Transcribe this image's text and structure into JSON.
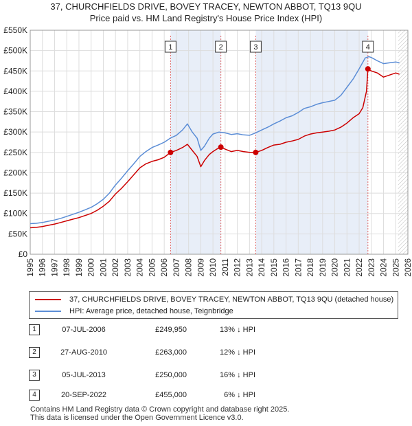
{
  "title_line1": "37, CHURCHFIELDS DRIVE, BOVEY TRACEY, NEWTON ABBOT, TQ13 9QU",
  "title_line2": "Price paid vs. HM Land Registry's House Price Index (HPI)",
  "chart_data": {
    "type": "line",
    "x_range": [
      1995,
      2026
    ],
    "ylim": [
      0,
      550000
    ],
    "y_ticks": [
      0,
      50000,
      100000,
      150000,
      200000,
      250000,
      300000,
      350000,
      400000,
      450000,
      500000,
      550000
    ],
    "y_tick_labels": [
      "£0",
      "£50K",
      "£100K",
      "£150K",
      "£200K",
      "£250K",
      "£300K",
      "£350K",
      "£400K",
      "£450K",
      "£500K",
      "£550K"
    ],
    "x_ticks": [
      1995,
      1996,
      1997,
      1998,
      1999,
      2000,
      2001,
      2002,
      2003,
      2004,
      2005,
      2006,
      2007,
      2008,
      2009,
      2010,
      2011,
      2012,
      2013,
      2014,
      2015,
      2016,
      2017,
      2018,
      2019,
      2020,
      2021,
      2022,
      2023,
      2024,
      2025,
      2026
    ],
    "x_tick_labels": [
      "1995",
      "1996",
      "1997",
      "1998",
      "1999",
      "2000",
      "2001",
      "2002",
      "2003",
      "2004",
      "2005",
      "2006",
      "2007",
      "2008",
      "2009",
      "2010",
      "2011",
      "2012",
      "2013",
      "2014",
      "2015",
      "2016",
      "2017",
      "2018",
      "2019",
      "2020",
      "2021",
      "2022",
      "2023",
      "2024",
      "2025",
      "2026"
    ],
    "grid": true,
    "shaded_periods": [
      [
        2006.52,
        2010.65
      ],
      [
        2013.51,
        2022.72
      ]
    ],
    "future_hatch_from": 2025.2,
    "series": [
      {
        "name": "37, CHURCHFIELDS DRIVE, BOVEY TRACEY, NEWTON ABBOT, TQ13 9QU (detached house)",
        "color": "#cc0000",
        "x": [
          1995.0,
          1995.5,
          1996.0,
          1996.5,
          1997.0,
          1997.5,
          1998.0,
          1998.5,
          1999.0,
          1999.5,
          2000.0,
          2000.5,
          2001.0,
          2001.5,
          2002.0,
          2002.5,
          2003.0,
          2003.5,
          2004.0,
          2004.5,
          2005.0,
          2005.5,
          2006.0,
          2006.52,
          2007.0,
          2007.5,
          2007.9,
          2008.3,
          2008.7,
          2009.0,
          2009.3,
          2009.7,
          2010.0,
          2010.3,
          2010.65,
          2011.0,
          2011.5,
          2012.0,
          2012.5,
          2013.0,
          2013.51,
          2014.0,
          2014.5,
          2015.0,
          2015.5,
          2016.0,
          2016.5,
          2017.0,
          2017.5,
          2018.0,
          2018.5,
          2019.0,
          2019.5,
          2020.0,
          2020.5,
          2021.0,
          2021.5,
          2022.0,
          2022.3,
          2022.6,
          2022.72,
          2023.0,
          2023.5,
          2024.0,
          2024.5,
          2025.0,
          2025.3
        ],
        "values": [
          65000,
          66000,
          68000,
          71000,
          74000,
          78000,
          82000,
          86000,
          90000,
          95000,
          100000,
          108000,
          118000,
          130000,
          148000,
          162000,
          178000,
          195000,
          212000,
          222000,
          228000,
          232000,
          238000,
          249950,
          255000,
          262000,
          270000,
          255000,
          240000,
          215000,
          230000,
          245000,
          252000,
          258000,
          263000,
          258000,
          252000,
          255000,
          252000,
          250000,
          250000,
          255000,
          262000,
          268000,
          270000,
          275000,
          278000,
          282000,
          290000,
          295000,
          298000,
          300000,
          302000,
          305000,
          312000,
          322000,
          335000,
          345000,
          360000,
          400000,
          455000,
          450000,
          445000,
          435000,
          440000,
          445000,
          442000
        ]
      },
      {
        "name": "HPI: Average price, detached house, Teignbridge",
        "color": "#5b8dd6",
        "x": [
          1995.0,
          1995.5,
          1996.0,
          1996.5,
          1997.0,
          1997.5,
          1998.0,
          1998.5,
          1999.0,
          1999.5,
          2000.0,
          2000.5,
          2001.0,
          2001.5,
          2002.0,
          2002.5,
          2003.0,
          2003.5,
          2004.0,
          2004.5,
          2005.0,
          2005.5,
          2006.0,
          2006.5,
          2007.0,
          2007.5,
          2007.9,
          2008.3,
          2008.7,
          2009.0,
          2009.3,
          2009.7,
          2010.0,
          2010.5,
          2011.0,
          2011.5,
          2012.0,
          2012.5,
          2013.0,
          2013.5,
          2014.0,
          2014.5,
          2015.0,
          2015.5,
          2016.0,
          2016.5,
          2017.0,
          2017.5,
          2018.0,
          2018.5,
          2019.0,
          2019.5,
          2020.0,
          2020.5,
          2021.0,
          2021.5,
          2022.0,
          2022.5,
          2022.8,
          2023.0,
          2023.5,
          2024.0,
          2024.5,
          2025.0,
          2025.3
        ],
        "values": [
          75000,
          76000,
          78000,
          81000,
          84000,
          88000,
          93000,
          98000,
          103000,
          109000,
          115000,
          124000,
          135000,
          150000,
          170000,
          187000,
          205000,
          222000,
          240000,
          252000,
          262000,
          268000,
          275000,
          285000,
          292000,
          305000,
          320000,
          300000,
          285000,
          255000,
          265000,
          285000,
          295000,
          300000,
          298000,
          294000,
          296000,
          293000,
          292000,
          298000,
          305000,
          312000,
          320000,
          327000,
          335000,
          340000,
          348000,
          358000,
          362000,
          368000,
          372000,
          375000,
          378000,
          390000,
          410000,
          430000,
          455000,
          482000,
          485000,
          483000,
          475000,
          468000,
          470000,
          472000,
          470000
        ]
      }
    ],
    "markers": [
      {
        "label": "1",
        "x": 2006.52,
        "value": 249950
      },
      {
        "label": "2",
        "x": 2010.65,
        "value": 263000
      },
      {
        "label": "3",
        "x": 2013.51,
        "value": 250000
      },
      {
        "label": "4",
        "x": 2022.72,
        "value": 455000
      }
    ]
  },
  "legend": {
    "property_label": "37, CHURCHFIELDS DRIVE, BOVEY TRACEY, NEWTON ABBOT, TQ13 9QU (detached house)",
    "hpi_label": "HPI: Average price, detached house, Teignbridge",
    "property_color": "#cc0000",
    "hpi_color": "#5b8dd6"
  },
  "sales": [
    {
      "num": "1",
      "date": "07-JUL-2006",
      "price": "£249,950",
      "hpi": "13% ↓ HPI"
    },
    {
      "num": "2",
      "date": "27-AUG-2010",
      "price": "£263,000",
      "hpi": "12% ↓ HPI"
    },
    {
      "num": "3",
      "date": "05-JUL-2013",
      "price": "£250,000",
      "hpi": "16% ↓ HPI"
    },
    {
      "num": "4",
      "date": "20-SEP-2022",
      "price": "£455,000",
      "hpi": "6% ↓ HPI"
    }
  ],
  "footer": {
    "line1": "Contains HM Land Registry data © Crown copyright and database right 2025.",
    "line2": "This data is licensed under the Open Government Licence v3.0."
  }
}
